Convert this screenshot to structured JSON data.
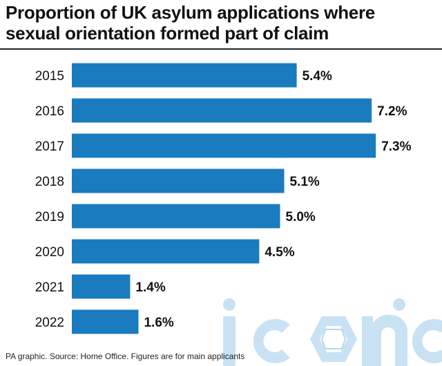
{
  "header": {
    "title_line1": "Proportion of UK asylum applications where",
    "title_line2": "sexual orientation formed part of claim"
  },
  "footer": {
    "source": "PA graphic. Source: Home Office. Figures are for main applicants"
  },
  "watermark": {
    "text": "iconic"
  },
  "colors": {
    "bar": "#1a7bbf",
    "text": "#111111",
    "watermark": "#c9e2f3"
  },
  "chart_data": {
    "type": "bar",
    "orientation": "horizontal",
    "title": "Proportion of UK asylum applications where sexual orientation formed part of claim",
    "categories": [
      "2015",
      "2016",
      "2017",
      "2018",
      "2019",
      "2020",
      "2021",
      "2022"
    ],
    "values": [
      5.4,
      7.2,
      7.3,
      5.1,
      5.0,
      4.5,
      1.4,
      1.6
    ],
    "value_labels": [
      "5.4%",
      "7.2%",
      "7.3%",
      "5.1%",
      "5.0%",
      "4.5%",
      "1.4%",
      "1.6%"
    ],
    "unit": "%",
    "grid": false,
    "legend": "none"
  }
}
